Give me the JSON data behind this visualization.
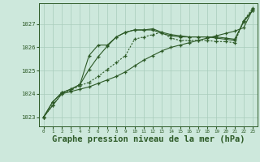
{
  "bg_color": "#cde8dc",
  "grid_color": "#a8ccbc",
  "line_color": "#2d5a27",
  "xlabel": "Graphe pression niveau de la mer (hPa)",
  "xlabel_fontsize": 7.5,
  "xlim": [
    -0.5,
    23.5
  ],
  "ylim": [
    1022.6,
    1027.9
  ],
  "yticks": [
    1023,
    1024,
    1025,
    1026,
    1027
  ],
  "xticks": [
    0,
    1,
    2,
    3,
    4,
    5,
    6,
    7,
    8,
    9,
    10,
    11,
    12,
    13,
    14,
    15,
    16,
    17,
    18,
    19,
    20,
    21,
    22,
    23
  ],
  "series1_steady": [
    1023.0,
    1023.5,
    1024.0,
    1024.1,
    1024.2,
    1024.3,
    1024.45,
    1024.6,
    1024.75,
    1024.95,
    1025.2,
    1025.45,
    1025.65,
    1025.85,
    1026.0,
    1026.1,
    1026.2,
    1026.3,
    1026.4,
    1026.5,
    1026.6,
    1026.7,
    1026.85,
    1027.65
  ],
  "series2_peak": [
    1023.0,
    1023.65,
    1024.05,
    1024.2,
    1024.4,
    1025.05,
    1025.6,
    1026.05,
    1026.45,
    1026.65,
    1026.75,
    1026.75,
    1026.8,
    1026.65,
    1026.55,
    1026.5,
    1026.45,
    1026.45,
    1026.45,
    1026.45,
    1026.4,
    1026.35,
    1027.1,
    1027.6
  ],
  "series3_peak2": [
    1023.0,
    1023.65,
    1024.05,
    1024.2,
    1024.4,
    1025.65,
    1026.1,
    1026.1,
    1026.45,
    1026.65,
    1026.75,
    1026.75,
    1026.75,
    1026.6,
    1026.5,
    1026.45,
    1026.45,
    1026.45,
    1026.45,
    1026.4,
    1026.35,
    1026.3,
    1027.15,
    1027.6
  ],
  "series4_dotted": [
    1023.0,
    1023.5,
    1024.0,
    1024.15,
    1024.35,
    1024.5,
    1024.75,
    1025.05,
    1025.35,
    1025.65,
    1026.35,
    1026.45,
    1026.55,
    1026.65,
    1026.4,
    1026.3,
    1026.3,
    1026.3,
    1026.3,
    1026.25,
    1026.25,
    1026.2,
    1027.15,
    1027.7
  ]
}
